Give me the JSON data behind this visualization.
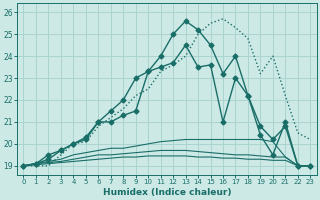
{
  "xlabel": "Humidex (Indice chaleur)",
  "bg_color": "#cce9e6",
  "grid_color": "#aad4d0",
  "line_color": "#1a6e68",
  "xlim": [
    -0.5,
    23.5
  ],
  "ylim": [
    18.6,
    26.4
  ],
  "yticks": [
    19,
    20,
    21,
    22,
    23,
    24,
    25,
    26
  ],
  "xticks": [
    0,
    1,
    2,
    3,
    4,
    5,
    6,
    7,
    8,
    9,
    10,
    11,
    12,
    13,
    14,
    15,
    16,
    17,
    18,
    19,
    20,
    21,
    22,
    23
  ],
  "series": [
    {
      "x": [
        0,
        1,
        2,
        3,
        4,
        5,
        6,
        7,
        8,
        9,
        10,
        11,
        12,
        13,
        14,
        15,
        16,
        17,
        18,
        19,
        20,
        21,
        22,
        23
      ],
      "y": [
        19.0,
        19.0,
        19.0,
        19.5,
        20.0,
        20.1,
        20.8,
        21.2,
        21.6,
        22.2,
        22.5,
        23.3,
        23.6,
        24.0,
        25.0,
        25.5,
        25.7,
        25.3,
        24.8,
        23.2,
        24.0,
        22.2,
        20.5,
        20.2
      ],
      "style": "dotted",
      "marker": null,
      "lw": 1.0
    },
    {
      "x": [
        0,
        1,
        2,
        3,
        4,
        5,
        6,
        7,
        8,
        9,
        10,
        11,
        12,
        13,
        14,
        15,
        16,
        17,
        18,
        19,
        20,
        21,
        22,
        23
      ],
      "y": [
        19.0,
        19.1,
        19.3,
        19.7,
        20.0,
        20.3,
        21.0,
        21.5,
        22.0,
        23.0,
        23.3,
        24.0,
        25.0,
        25.6,
        25.2,
        24.5,
        23.2,
        24.0,
        22.2,
        20.8,
        20.2,
        20.8,
        19.0,
        19.0
      ],
      "style": "solid",
      "marker": "D",
      "lw": 1.0
    },
    {
      "x": [
        0,
        1,
        2,
        3,
        4,
        5,
        6,
        7,
        8,
        9,
        10,
        11,
        12,
        13,
        14,
        15,
        16,
        17,
        18,
        19,
        20,
        21,
        22,
        23
      ],
      "y": [
        19.0,
        19.1,
        19.5,
        19.7,
        20.0,
        20.2,
        21.0,
        21.0,
        21.3,
        21.5,
        23.3,
        23.5,
        23.7,
        24.5,
        23.5,
        23.6,
        21.0,
        23.0,
        22.2,
        20.4,
        19.5,
        21.0,
        19.0,
        19.0
      ],
      "style": "solid",
      "marker": "D",
      "lw": 1.0
    },
    {
      "x": [
        0,
        1,
        2,
        3,
        4,
        5,
        6,
        7,
        8,
        9,
        10,
        11,
        12,
        13,
        14,
        15,
        16,
        17,
        18,
        19,
        20,
        21,
        22,
        23
      ],
      "y": [
        19.0,
        19.1,
        19.2,
        19.3,
        19.5,
        19.6,
        19.7,
        19.8,
        19.8,
        19.9,
        20.0,
        20.1,
        20.15,
        20.2,
        20.2,
        20.2,
        20.2,
        20.2,
        20.2,
        20.2,
        20.1,
        19.4,
        19.0,
        19.0
      ],
      "style": "solid",
      "marker": null,
      "lw": 0.8
    },
    {
      "x": [
        0,
        1,
        2,
        3,
        4,
        5,
        6,
        7,
        8,
        9,
        10,
        11,
        12,
        13,
        14,
        15,
        16,
        17,
        18,
        19,
        20,
        21,
        22,
        23
      ],
      "y": [
        19.0,
        19.1,
        19.15,
        19.2,
        19.3,
        19.4,
        19.5,
        19.5,
        19.55,
        19.6,
        19.65,
        19.7,
        19.7,
        19.7,
        19.65,
        19.6,
        19.55,
        19.5,
        19.5,
        19.45,
        19.4,
        19.4,
        19.0,
        19.0
      ],
      "style": "solid",
      "marker": null,
      "lw": 0.8
    },
    {
      "x": [
        0,
        1,
        2,
        3,
        4,
        5,
        6,
        7,
        8,
        9,
        10,
        11,
        12,
        13,
        14,
        15,
        16,
        17,
        18,
        19,
        20,
        21,
        22,
        23
      ],
      "y": [
        19.0,
        19.05,
        19.1,
        19.15,
        19.2,
        19.25,
        19.3,
        19.35,
        19.4,
        19.4,
        19.45,
        19.45,
        19.45,
        19.45,
        19.4,
        19.4,
        19.35,
        19.35,
        19.3,
        19.3,
        19.25,
        19.25,
        19.0,
        19.0
      ],
      "style": "solid",
      "marker": null,
      "lw": 0.8
    }
  ]
}
